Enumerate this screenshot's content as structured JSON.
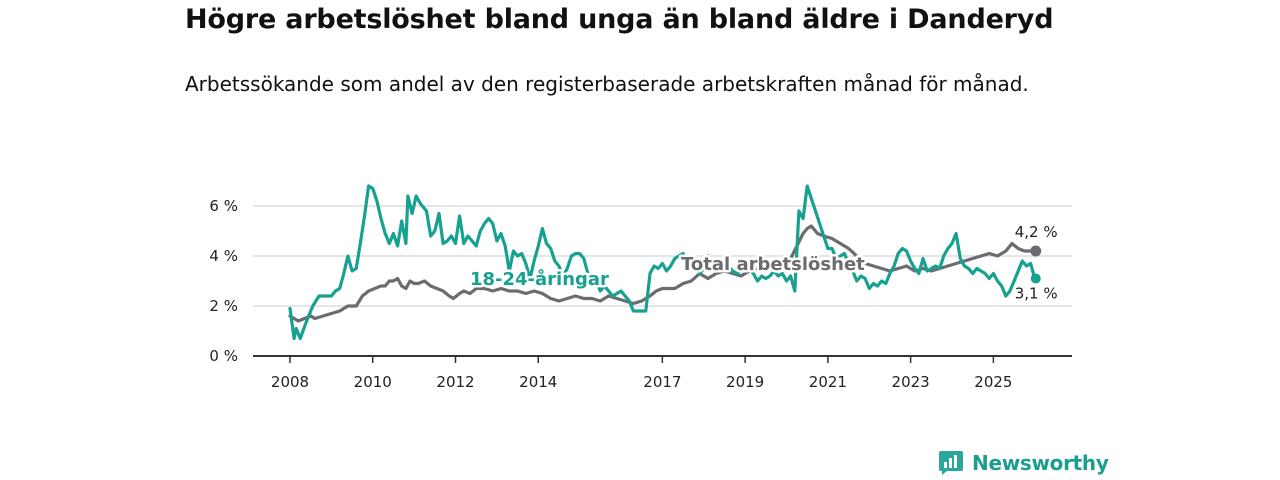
{
  "header": {
    "title": "Högre arbetslöshet bland unga än bland äldre i Danderyd",
    "subtitle": "Arbetssökande som andel av den registerbaserade arbetskraften månad för månad."
  },
  "brand": {
    "name": "Newsworthy",
    "icon": "newsworthy-logo-icon"
  },
  "colors": {
    "youth": "#17a190",
    "total": "#6c6b70",
    "grid": "#dddddd",
    "axis": "#333333"
  },
  "chart_data": {
    "type": "line",
    "title": "Högre arbetslöshet bland unga än bland äldre i Danderyd",
    "xlabel": "",
    "ylabel": "",
    "xlim": [
      2008.0,
      2026.9
    ],
    "ylim": [
      0,
      7.2
    ],
    "grid": true,
    "x_ticks": [
      {
        "value": 2008,
        "label": "2008"
      },
      {
        "value": 2010,
        "label": "2010"
      },
      {
        "value": 2012,
        "label": "2012"
      },
      {
        "value": 2014,
        "label": "2014"
      },
      {
        "value": 2017,
        "label": "2017"
      },
      {
        "value": 2019,
        "label": "2019"
      },
      {
        "value": 2021,
        "label": "2021"
      },
      {
        "value": 2023,
        "label": "2023"
      },
      {
        "value": 2025,
        "label": "2025"
      }
    ],
    "y_ticks": [
      {
        "value": 0,
        "label": "0 %"
      },
      {
        "value": 2,
        "label": "2 %"
      },
      {
        "value": 4,
        "label": "4 %"
      },
      {
        "value": 6,
        "label": "6 %"
      }
    ],
    "series": [
      {
        "name": "Total arbetslöshet",
        "label": "Total arbetslöshet",
        "color": "#6c6b70",
        "end_label": "4,2 %",
        "points": [
          [
            2008.0,
            1.6
          ],
          [
            2008.1,
            1.5
          ],
          [
            2008.2,
            1.4
          ],
          [
            2008.35,
            1.5
          ],
          [
            2008.5,
            1.6
          ],
          [
            2008.6,
            1.5
          ],
          [
            2008.8,
            1.6
          ],
          [
            2009.0,
            1.7
          ],
          [
            2009.2,
            1.8
          ],
          [
            2009.4,
            2.0
          ],
          [
            2009.6,
            2.0
          ],
          [
            2009.75,
            2.4
          ],
          [
            2009.9,
            2.6
          ],
          [
            2010.05,
            2.7
          ],
          [
            2010.2,
            2.8
          ],
          [
            2010.3,
            2.8
          ],
          [
            2010.4,
            3.0
          ],
          [
            2010.5,
            3.0
          ],
          [
            2010.6,
            3.1
          ],
          [
            2010.7,
            2.8
          ],
          [
            2010.8,
            2.7
          ],
          [
            2010.9,
            3.0
          ],
          [
            2011.0,
            2.9
          ],
          [
            2011.1,
            2.9
          ],
          [
            2011.25,
            3.0
          ],
          [
            2011.4,
            2.8
          ],
          [
            2011.55,
            2.7
          ],
          [
            2011.7,
            2.6
          ],
          [
            2011.85,
            2.4
          ],
          [
            2011.95,
            2.3
          ],
          [
            2012.1,
            2.5
          ],
          [
            2012.2,
            2.6
          ],
          [
            2012.35,
            2.5
          ],
          [
            2012.5,
            2.7
          ],
          [
            2012.7,
            2.7
          ],
          [
            2012.9,
            2.6
          ],
          [
            2013.1,
            2.7
          ],
          [
            2013.3,
            2.6
          ],
          [
            2013.5,
            2.6
          ],
          [
            2013.7,
            2.5
          ],
          [
            2013.9,
            2.6
          ],
          [
            2014.1,
            2.5
          ],
          [
            2014.3,
            2.3
          ],
          [
            2014.5,
            2.2
          ],
          [
            2014.7,
            2.3
          ],
          [
            2014.9,
            2.4
          ],
          [
            2015.1,
            2.3
          ],
          [
            2015.3,
            2.3
          ],
          [
            2015.5,
            2.2
          ],
          [
            2015.7,
            2.4
          ],
          [
            2015.9,
            2.3
          ],
          [
            2016.1,
            2.2
          ],
          [
            2016.3,
            2.1
          ],
          [
            2016.5,
            2.2
          ],
          [
            2016.7,
            2.4
          ],
          [
            2016.85,
            2.6
          ],
          [
            2017.0,
            2.7
          ],
          [
            2017.3,
            2.7
          ],
          [
            2017.5,
            2.9
          ],
          [
            2017.7,
            3.0
          ],
          [
            2017.9,
            3.3
          ],
          [
            2018.1,
            3.1
          ],
          [
            2018.3,
            3.3
          ],
          [
            2018.5,
            3.4
          ],
          [
            2018.7,
            3.3
          ],
          [
            2018.9,
            3.2
          ],
          [
            2019.1,
            3.4
          ],
          [
            2019.3,
            3.5
          ],
          [
            2019.5,
            3.6
          ],
          [
            2019.7,
            3.6
          ],
          [
            2019.9,
            3.7
          ],
          [
            2020.1,
            3.9
          ],
          [
            2020.25,
            4.4
          ],
          [
            2020.4,
            4.9
          ],
          [
            2020.5,
            5.1
          ],
          [
            2020.6,
            5.2
          ],
          [
            2020.75,
            4.9
          ],
          [
            2020.9,
            4.8
          ],
          [
            2021.1,
            4.7
          ],
          [
            2021.3,
            4.5
          ],
          [
            2021.5,
            4.3
          ],
          [
            2021.7,
            4.0
          ],
          [
            2021.9,
            3.7
          ],
          [
            2022.1,
            3.6
          ],
          [
            2022.3,
            3.5
          ],
          [
            2022.5,
            3.4
          ],
          [
            2022.7,
            3.5
          ],
          [
            2022.9,
            3.6
          ],
          [
            2023.1,
            3.4
          ],
          [
            2023.3,
            3.5
          ],
          [
            2023.5,
            3.4
          ],
          [
            2023.7,
            3.5
          ],
          [
            2023.9,
            3.6
          ],
          [
            2024.1,
            3.7
          ],
          [
            2024.3,
            3.8
          ],
          [
            2024.5,
            3.9
          ],
          [
            2024.7,
            4.0
          ],
          [
            2024.9,
            4.1
          ],
          [
            2025.1,
            4.0
          ],
          [
            2025.3,
            4.2
          ],
          [
            2025.45,
            4.5
          ],
          [
            2025.6,
            4.3
          ],
          [
            2025.75,
            4.2
          ],
          [
            2025.9,
            4.2
          ],
          [
            2026.0,
            4.2
          ]
        ]
      },
      {
        "name": "18-24-åringar",
        "label": "18-24-åringar",
        "color": "#17a190",
        "end_label": "3,1 %",
        "points": [
          [
            2008.0,
            1.9
          ],
          [
            2008.1,
            0.7
          ],
          [
            2008.15,
            1.1
          ],
          [
            2008.25,
            0.7
          ],
          [
            2008.4,
            1.4
          ],
          [
            2008.55,
            2.0
          ],
          [
            2008.7,
            2.4
          ],
          [
            2008.85,
            2.4
          ],
          [
            2009.0,
            2.4
          ],
          [
            2009.1,
            2.6
          ],
          [
            2009.2,
            2.7
          ],
          [
            2009.3,
            3.3
          ],
          [
            2009.4,
            4.0
          ],
          [
            2009.5,
            3.4
          ],
          [
            2009.6,
            3.5
          ],
          [
            2009.7,
            4.5
          ],
          [
            2009.8,
            5.6
          ],
          [
            2009.9,
            6.8
          ],
          [
            2010.0,
            6.7
          ],
          [
            2010.1,
            6.2
          ],
          [
            2010.2,
            5.5
          ],
          [
            2010.3,
            4.9
          ],
          [
            2010.4,
            4.5
          ],
          [
            2010.5,
            4.9
          ],
          [
            2010.6,
            4.4
          ],
          [
            2010.7,
            5.4
          ],
          [
            2010.8,
            4.5
          ],
          [
            2010.85,
            6.4
          ],
          [
            2010.95,
            5.7
          ],
          [
            2011.05,
            6.4
          ],
          [
            2011.15,
            6.1
          ],
          [
            2011.3,
            5.8
          ],
          [
            2011.4,
            4.8
          ],
          [
            2011.5,
            5.0
          ],
          [
            2011.6,
            5.7
          ],
          [
            2011.7,
            4.5
          ],
          [
            2011.8,
            4.6
          ],
          [
            2011.9,
            4.8
          ],
          [
            2012.0,
            4.5
          ],
          [
            2012.1,
            5.6
          ],
          [
            2012.2,
            4.5
          ],
          [
            2012.3,
            4.8
          ],
          [
            2012.4,
            4.6
          ],
          [
            2012.5,
            4.4
          ],
          [
            2012.6,
            5.0
          ],
          [
            2012.7,
            5.3
          ],
          [
            2012.8,
            5.5
          ],
          [
            2012.9,
            5.3
          ],
          [
            2013.0,
            4.6
          ],
          [
            2013.1,
            4.9
          ],
          [
            2013.2,
            4.4
          ],
          [
            2013.3,
            3.4
          ],
          [
            2013.4,
            4.2
          ],
          [
            2013.5,
            4.0
          ],
          [
            2013.6,
            4.1
          ],
          [
            2013.7,
            3.7
          ],
          [
            2013.8,
            3.1
          ],
          [
            2013.9,
            3.8
          ],
          [
            2014.0,
            4.4
          ],
          [
            2014.1,
            5.1
          ],
          [
            2014.2,
            4.5
          ],
          [
            2014.3,
            4.3
          ],
          [
            2014.4,
            3.8
          ],
          [
            2014.5,
            3.6
          ],
          [
            2014.6,
            3.2
          ],
          [
            2014.7,
            3.5
          ],
          [
            2014.8,
            4.0
          ],
          [
            2014.9,
            4.1
          ],
          [
            2015.0,
            4.1
          ],
          [
            2015.1,
            3.9
          ],
          [
            2015.2,
            3.3
          ],
          [
            2015.3,
            3.2
          ],
          [
            2015.4,
            3.0
          ],
          [
            2015.5,
            2.6
          ],
          [
            2015.6,
            2.8
          ],
          [
            2015.7,
            2.6
          ],
          [
            2015.8,
            2.4
          ],
          [
            2016.0,
            2.6
          ],
          [
            2016.1,
            2.4
          ],
          [
            2016.2,
            2.2
          ],
          [
            2016.3,
            1.8
          ],
          [
            2016.4,
            1.8
          ],
          [
            2016.6,
            1.8
          ],
          [
            2016.7,
            3.3
          ],
          [
            2016.8,
            3.6
          ],
          [
            2016.9,
            3.5
          ],
          [
            2017.0,
            3.7
          ],
          [
            2017.1,
            3.4
          ],
          [
            2017.2,
            3.6
          ],
          [
            2017.3,
            3.9
          ],
          [
            2017.4,
            4.0
          ],
          [
            2017.5,
            4.1
          ],
          [
            2017.6,
            3.6
          ],
          [
            2017.7,
            3.8
          ],
          [
            2017.8,
            3.6
          ],
          [
            2017.9,
            3.3
          ],
          [
            2018.0,
            3.5
          ],
          [
            2018.1,
            4.0
          ],
          [
            2018.2,
            3.7
          ],
          [
            2018.3,
            3.4
          ],
          [
            2018.4,
            3.8
          ],
          [
            2018.5,
            3.8
          ],
          [
            2018.6,
            3.6
          ],
          [
            2018.7,
            3.4
          ],
          [
            2018.8,
            3.3
          ],
          [
            2018.9,
            3.4
          ],
          [
            2019.0,
            3.8
          ],
          [
            2019.1,
            3.5
          ],
          [
            2019.2,
            3.3
          ],
          [
            2019.3,
            3.0
          ],
          [
            2019.4,
            3.2
          ],
          [
            2019.5,
            3.1
          ],
          [
            2019.6,
            3.2
          ],
          [
            2019.7,
            3.4
          ],
          [
            2019.8,
            3.2
          ],
          [
            2019.9,
            3.3
          ],
          [
            2020.0,
            3.0
          ],
          [
            2020.1,
            3.2
          ],
          [
            2020.2,
            2.6
          ],
          [
            2020.3,
            5.8
          ],
          [
            2020.4,
            5.5
          ],
          [
            2020.5,
            6.8
          ],
          [
            2020.6,
            6.3
          ],
          [
            2020.7,
            5.8
          ],
          [
            2020.8,
            5.3
          ],
          [
            2020.9,
            4.8
          ],
          [
            2021.0,
            4.3
          ],
          [
            2021.1,
            4.3
          ],
          [
            2021.2,
            3.9
          ],
          [
            2021.3,
            4.0
          ],
          [
            2021.4,
            4.1
          ],
          [
            2021.5,
            3.7
          ],
          [
            2021.6,
            3.4
          ],
          [
            2021.7,
            3.0
          ],
          [
            2021.8,
            3.2
          ],
          [
            2021.9,
            3.1
          ],
          [
            2022.0,
            2.7
          ],
          [
            2022.1,
            2.9
          ],
          [
            2022.2,
            2.8
          ],
          [
            2022.3,
            3.0
          ],
          [
            2022.4,
            2.9
          ],
          [
            2022.5,
            3.3
          ],
          [
            2022.6,
            3.6
          ],
          [
            2022.7,
            4.1
          ],
          [
            2022.8,
            4.3
          ],
          [
            2022.9,
            4.2
          ],
          [
            2023.0,
            3.8
          ],
          [
            2023.1,
            3.5
          ],
          [
            2023.2,
            3.3
          ],
          [
            2023.3,
            3.9
          ],
          [
            2023.4,
            3.4
          ],
          [
            2023.5,
            3.5
          ],
          [
            2023.6,
            3.6
          ],
          [
            2023.7,
            3.5
          ],
          [
            2023.8,
            4.0
          ],
          [
            2023.9,
            4.3
          ],
          [
            2024.0,
            4.5
          ],
          [
            2024.1,
            4.9
          ],
          [
            2024.2,
            3.9
          ],
          [
            2024.3,
            3.6
          ],
          [
            2024.4,
            3.5
          ],
          [
            2024.5,
            3.3
          ],
          [
            2024.6,
            3.5
          ],
          [
            2024.7,
            3.4
          ],
          [
            2024.8,
            3.3
          ],
          [
            2024.9,
            3.1
          ],
          [
            2025.0,
            3.3
          ],
          [
            2025.1,
            3.0
          ],
          [
            2025.2,
            2.8
          ],
          [
            2025.3,
            2.4
          ],
          [
            2025.4,
            2.6
          ],
          [
            2025.5,
            3.0
          ],
          [
            2025.6,
            3.4
          ],
          [
            2025.7,
            3.8
          ],
          [
            2025.8,
            3.6
          ],
          [
            2025.9,
            3.7
          ],
          [
            2026.0,
            3.1
          ]
        ]
      }
    ]
  }
}
